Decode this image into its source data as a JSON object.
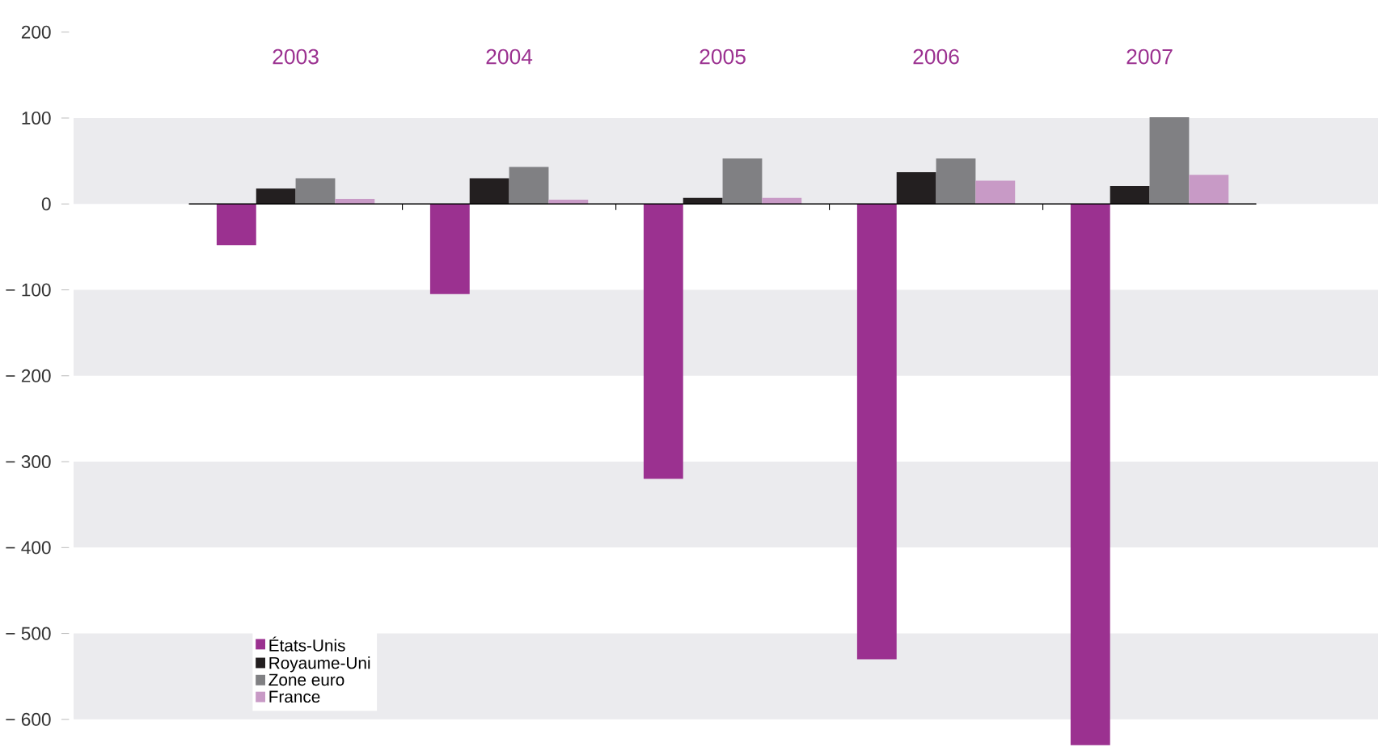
{
  "chart_data": {
    "type": "bar",
    "categories": [
      "2003",
      "2004",
      "2005",
      "2006",
      "2007"
    ],
    "series": [
      {
        "name": "États-Unis",
        "color": "#9b3190",
        "values": [
          -48,
          -105,
          -320,
          -530,
          -630
        ]
      },
      {
        "name": "Royaume-Uni",
        "color": "#231f20",
        "values": [
          18,
          30,
          7,
          37,
          21
        ]
      },
      {
        "name": "Zone euro",
        "color": "#808083",
        "values": [
          30,
          43,
          53,
          53,
          101
        ]
      },
      {
        "name": "France",
        "color": "#c89ac6",
        "values": [
          6,
          5,
          7,
          27,
          34
        ]
      }
    ],
    "ylim": [
      -632,
      200
    ],
    "yticks": [
      {
        "value": -600,
        "label": "− 600"
      },
      {
        "value": -500,
        "label": "− 500"
      },
      {
        "value": -400,
        "label": "− 400"
      },
      {
        "value": -300,
        "label": "− 300"
      },
      {
        "value": -200,
        "label": "− 200"
      },
      {
        "value": -100,
        "label": "− 100"
      },
      0,
      100,
      200
    ],
    "bands": [
      {
        "axis": "y",
        "from": 0,
        "to": 100,
        "color": "#ebebee"
      },
      {
        "axis": "y",
        "from": -200,
        "to": -100,
        "color": "#ebebee"
      },
      {
        "axis": "y",
        "from": -400,
        "to": -300,
        "color": "#ebebee"
      },
      {
        "axis": "y",
        "from": -600,
        "to": -500,
        "color": "#ebebee"
      }
    ],
    "legend": "bottom left"
  }
}
